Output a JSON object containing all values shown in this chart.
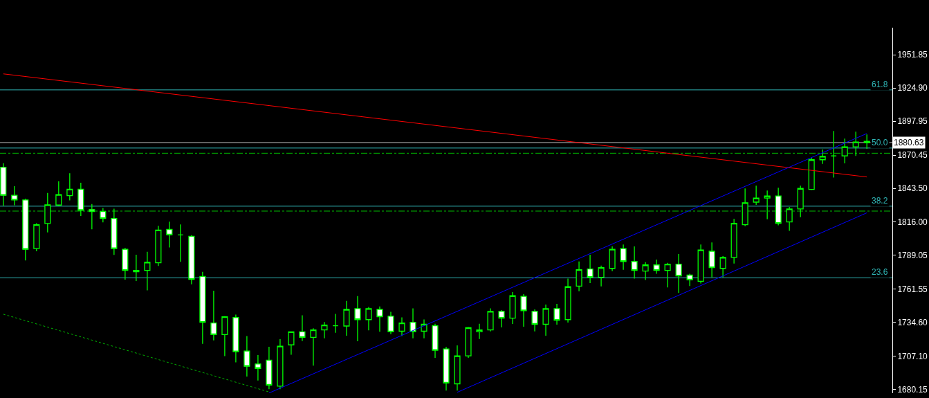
{
  "chart_data": {
    "type": "candlestick",
    "color": "#00ff00",
    "categories": [
      null,
      null,
      null,
      null,
      null,
      null,
      null,
      null,
      null,
      null,
      null,
      null,
      null,
      null,
      null,
      null,
      null,
      null,
      null,
      null,
      null,
      null,
      null,
      null,
      null,
      null,
      null,
      null,
      null,
      null,
      null,
      null,
      null,
      null,
      null,
      null,
      null,
      null,
      null,
      null,
      null,
      null,
      null,
      null,
      null,
      null,
      null,
      null,
      null,
      null,
      null,
      null,
      null,
      null,
      null,
      null,
      null,
      null,
      null,
      null,
      null,
      null,
      null,
      null,
      null,
      null,
      null,
      null,
      null,
      null,
      null,
      null,
      null,
      null,
      null,
      null,
      null,
      null,
      null
    ],
    "ohlc": [
      [
        1860.6,
        1863.9,
        1829.3,
        1837.8
      ],
      [
        1837.8,
        1845.2,
        1829.7,
        1834.0
      ],
      [
        1834.0,
        1835.1,
        1785.0,
        1794.0
      ],
      [
        1794.6,
        1815.1,
        1792.4,
        1814.0
      ],
      [
        1814.9,
        1839.7,
        1807.7,
        1830.1
      ],
      [
        1829.9,
        1849.1,
        1829.1,
        1838.4
      ],
      [
        1837.6,
        1855.8,
        1833.7,
        1842.8
      ],
      [
        1842.8,
        1848.0,
        1821.0,
        1825.6
      ],
      [
        1826.2,
        1830.8,
        1810.3,
        1824.6
      ],
      [
        1824.6,
        1827.5,
        1815.8,
        1819.0
      ],
      [
        1819.0,
        1826.9,
        1789.4,
        1794.6
      ],
      [
        1794.0,
        1795.2,
        1769.4,
        1776.9
      ],
      [
        1776.9,
        1789.6,
        1768.3,
        1775.7
      ],
      [
        1776.9,
        1792.0,
        1760.6,
        1783.5
      ],
      [
        1783.0,
        1813.1,
        1780.5,
        1809.6
      ],
      [
        1810.1,
        1816.4,
        1795.5,
        1805.7
      ],
      [
        1805.7,
        1814.2,
        1783.8,
        1805.7
      ],
      [
        1804.6,
        1805.5,
        1765.5,
        1769.6
      ],
      [
        1771.9,
        1775.7,
        1717.3,
        1734.7
      ],
      [
        1734.2,
        1760.4,
        1720.1,
        1724.7
      ],
      [
        1724.7,
        1739.7,
        1707.3,
        1739.2
      ],
      [
        1738.6,
        1741.0,
        1702.2,
        1710.9
      ],
      [
        1711.4,
        1723.6,
        1690.7,
        1699.0
      ],
      [
        1700.9,
        1708.1,
        1687.4,
        1697.3
      ],
      [
        1704.0,
        1714.8,
        1680.5,
        1683.7
      ],
      [
        1682.9,
        1721.0,
        1680.4,
        1715.3
      ],
      [
        1716.4,
        1727.0,
        1708.4,
        1727.0
      ],
      [
        1727.0,
        1740.4,
        1719.5,
        1722.5
      ],
      [
        1722.5,
        1729.9,
        1699.6,
        1728.6
      ],
      [
        1728.6,
        1734.9,
        1721.7,
        1732.5
      ],
      [
        1731.9,
        1741.5,
        1726.2,
        1731.9
      ],
      [
        1731.7,
        1752.1,
        1723.8,
        1745.2
      ],
      [
        1745.8,
        1756.0,
        1719.4,
        1736.9
      ],
      [
        1736.9,
        1747.1,
        1728.2,
        1745.8
      ],
      [
        1745.2,
        1747.6,
        1727.1,
        1739.2
      ],
      [
        1739.7,
        1743.2,
        1725.1,
        1727.0
      ],
      [
        1727.5,
        1738.7,
        1723.6,
        1734.2
      ],
      [
        1734.7,
        1746.0,
        1721.7,
        1727.0
      ],
      [
        1727.5,
        1737.1,
        1721.7,
        1733.1
      ],
      [
        1731.9,
        1733.6,
        1705.9,
        1712.0
      ],
      [
        1713.1,
        1714.8,
        1679.3,
        1685.4
      ],
      [
        1684.8,
        1716.0,
        1679.3,
        1707.5
      ],
      [
        1707.5,
        1730.8,
        1705.9,
        1730.3
      ],
      [
        1727.0,
        1733.6,
        1721.2,
        1728.6
      ],
      [
        1728.6,
        1746.0,
        1727.3,
        1743.6
      ],
      [
        1743.6,
        1744.7,
        1730.6,
        1738.1
      ],
      [
        1738.1,
        1759.3,
        1733.4,
        1756.3
      ],
      [
        1755.8,
        1757.6,
        1731.2,
        1744.1
      ],
      [
        1743.6,
        1745.2,
        1727.3,
        1733.1
      ],
      [
        1733.1,
        1749.1,
        1723.9,
        1745.8
      ],
      [
        1745.8,
        1749.7,
        1732.8,
        1736.4
      ],
      [
        1736.9,
        1770.2,
        1734.5,
        1763.6
      ],
      [
        1764.1,
        1784.1,
        1760.0,
        1777.4
      ],
      [
        1778.0,
        1789.6,
        1766.6,
        1771.3
      ],
      [
        1771.3,
        1780.7,
        1763.9,
        1779.1
      ],
      [
        1778.5,
        1796.3,
        1776.3,
        1794.0
      ],
      [
        1794.6,
        1797.9,
        1777.4,
        1784.1
      ],
      [
        1784.1,
        1796.3,
        1770.2,
        1776.9
      ],
      [
        1776.3,
        1783.5,
        1769.1,
        1781.3
      ],
      [
        1781.3,
        1785.7,
        1774.1,
        1776.9
      ],
      [
        1776.9,
        1783.0,
        1763.0,
        1781.9
      ],
      [
        1781.9,
        1790.1,
        1758.7,
        1772.4
      ],
      [
        1773.0,
        1774.1,
        1764.1,
        1769.1
      ],
      [
        1768.0,
        1797.9,
        1766.3,
        1793.5
      ],
      [
        1792.4,
        1799.6,
        1771.3,
        1779.1
      ],
      [
        1778.5,
        1788.5,
        1771.3,
        1787.4
      ],
      [
        1787.4,
        1818.6,
        1782.4,
        1815.1
      ],
      [
        1814.0,
        1843.4,
        1812.7,
        1831.8
      ],
      [
        1832.3,
        1845.6,
        1830.1,
        1835.6
      ],
      [
        1835.6,
        1841.7,
        1818.4,
        1837.3
      ],
      [
        1837.3,
        1843.9,
        1813.4,
        1815.1
      ],
      [
        1816.2,
        1828.4,
        1809.0,
        1826.8
      ],
      [
        1826.8,
        1845.6,
        1820.1,
        1843.4
      ],
      [
        1842.6,
        1868.3,
        1842.1,
        1866.7
      ],
      [
        1866.7,
        1875.0,
        1863.4,
        1869.5
      ],
      [
        1869.8,
        1890.0,
        1852.3,
        1869.8
      ],
      [
        1869.8,
        1883.9,
        1863.7,
        1877.2
      ],
      [
        1877.2,
        1889.4,
        1869.8,
        1881.1
      ],
      [
        1881.7,
        1887.2,
        1875.5,
        1880.63
      ]
    ],
    "series": [
      {
        "type": "line",
        "color": "#ff0000",
        "values": [
          1936.4,
          null,
          null,
          null,
          null,
          null,
          null,
          null,
          null,
          null,
          null,
          null,
          null,
          null,
          null,
          null,
          null,
          null,
          null,
          null,
          null,
          null,
          null,
          null,
          null,
          null,
          null,
          null,
          null,
          null,
          null,
          null,
          null,
          null,
          null,
          null,
          null,
          null,
          null,
          null,
          null,
          null,
          null,
          null,
          null,
          null,
          null,
          null,
          null,
          null,
          null,
          null,
          null,
          null,
          null,
          null,
          null,
          null,
          null,
          null,
          null,
          null,
          null,
          null,
          null,
          null,
          null,
          null,
          null,
          null,
          null,
          null,
          null,
          null,
          null,
          null,
          null,
          null,
          1852.7
        ]
      },
      {
        "type": "line",
        "color": "#0000ff",
        "values": [
          null,
          null,
          null,
          null,
          null,
          null,
          null,
          null,
          null,
          null,
          null,
          null,
          null,
          null,
          null,
          null,
          null,
          null,
          null,
          null,
          null,
          null,
          null,
          null,
          1677.3,
          null,
          null,
          null,
          null,
          null,
          null,
          null,
          null,
          null,
          null,
          null,
          null,
          null,
          null,
          null,
          null,
          null,
          null,
          null,
          null,
          null,
          null,
          null,
          null,
          null,
          null,
          null,
          null,
          null,
          null,
          null,
          null,
          null,
          null,
          null,
          null,
          null,
          null,
          null,
          null,
          null,
          null,
          null,
          null,
          null,
          null,
          null,
          null,
          null,
          null,
          null,
          null,
          null,
          1888.0
        ]
      },
      {
        "type": "line",
        "color": "#0000ff",
        "values": [
          null,
          null,
          null,
          null,
          null,
          null,
          null,
          null,
          null,
          null,
          null,
          null,
          null,
          null,
          null,
          null,
          null,
          null,
          null,
          null,
          null,
          null,
          null,
          null,
          null,
          null,
          null,
          null,
          null,
          null,
          null,
          null,
          null,
          null,
          null,
          null,
          null,
          null,
          null,
          null,
          null,
          1677.9,
          null,
          null,
          null,
          null,
          null,
          null,
          null,
          null,
          null,
          null,
          null,
          null,
          null,
          null,
          null,
          null,
          null,
          null,
          null,
          null,
          null,
          null,
          null,
          null,
          null,
          null,
          null,
          null,
          null,
          null,
          null,
          null,
          null,
          null,
          null,
          null,
          1823.6
        ]
      },
      {
        "type": "line",
        "color": "#00b000",
        "line_style": "dotted",
        "values": [
          1741.3,
          null,
          null,
          null,
          null,
          null,
          null,
          null,
          null,
          null,
          null,
          null,
          null,
          null,
          null,
          null,
          null,
          null,
          null,
          null,
          null,
          null,
          null,
          null,
          1678.2,
          null,
          null,
          null,
          null,
          null,
          null,
          null,
          null,
          null,
          null,
          null,
          null,
          null,
          null,
          null,
          null,
          null,
          null,
          null,
          null,
          null,
          null,
          null,
          null,
          null,
          null,
          null,
          null,
          null,
          null,
          null,
          null,
          null,
          null,
          null,
          null,
          null,
          null,
          null,
          null,
          null,
          null,
          null,
          null,
          null,
          null,
          null,
          null,
          null,
          null,
          null,
          null,
          null,
          null
        ]
      }
    ],
    "ylim": [
      1677.2,
      1973.9
    ],
    "yticks": [
      1951.85,
      {
        "value": 1924.9,
        "label": "1924.90"
      },
      1897.95,
      1870.45,
      {
        "value": 1843.5,
        "label": "1843.50"
      },
      {
        "value": 1816,
        "label": "1816.00"
      },
      1789.05,
      1761.55,
      {
        "value": 1734.6,
        "label": "1734.60"
      },
      {
        "value": 1707.1,
        "label": "1707.10"
      },
      1680.15
    ],
    "tick_labels": "y",
    "ref_lines": [
      {
        "axis": "y",
        "value": 1923.4,
        "color": "#2fb5b5"
      },
      {
        "axis": "y",
        "value": 1880.63,
        "label": "1880.63",
        "color": "#c0c0c0"
      },
      {
        "axis": "y",
        "value": 1876.2,
        "color": "#2fb5b5"
      },
      {
        "axis": "y",
        "value": 1872,
        "color": "#00c000",
        "line_style": "dashed"
      },
      {
        "axis": "y",
        "value": 1829.0,
        "color": "#2fb5b5"
      },
      {
        "axis": "y",
        "value": 1825,
        "color": "#00c000",
        "line_style": "dashed"
      },
      {
        "axis": "y",
        "value": 1770.8,
        "color": "#2fb5b5"
      }
    ],
    "annotations": [
      {
        "text": "61.8",
        "y": 1923.4
      },
      {
        "text": "50.0",
        "y": 1876.2
      },
      {
        "text": "38.2",
        "y": 1829.0
      },
      {
        "text": "23.6",
        "y": 1770.8
      }
    ]
  }
}
